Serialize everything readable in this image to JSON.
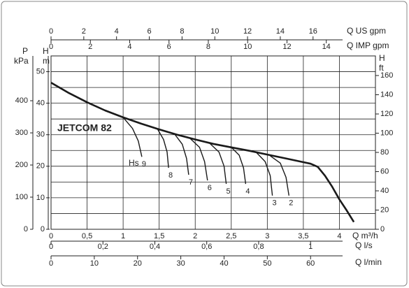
{
  "chart_data": {
    "type": "line",
    "product": "JETCOM 82",
    "suction_label": "Hs",
    "xlabel": "Q m³/h",
    "xlim": [
      0,
      4.5
    ],
    "xticks": [
      0,
      {
        "value": 0.5,
        "label": "0,5"
      },
      1,
      {
        "value": 1.5,
        "label": "1,5"
      },
      2,
      {
        "value": 2.5,
        "label": "2,5"
      },
      3,
      {
        "value": 3.5,
        "label": "3,5"
      },
      4
    ],
    "ylabel": "H",
    "yunit": "m",
    "ylim": [
      0,
      55
    ],
    "yticks": [
      0,
      10,
      20,
      30,
      40,
      50
    ],
    "yminor": [
      5,
      15,
      25,
      35,
      45
    ],
    "grid": true,
    "axes": [
      {
        "label": "Q US gpm",
        "lim": [
          0,
          19.81
        ],
        "ticks": [
          0,
          2,
          4,
          6,
          8,
          10,
          12,
          14,
          16
        ]
      },
      {
        "label": "Q IMP gpm",
        "lim": [
          0,
          16.5
        ],
        "ticks": [
          0,
          2,
          4,
          6,
          8,
          10,
          12,
          14
        ]
      },
      {
        "label": "Q l/s",
        "lim": [
          0,
          1.25
        ],
        "ticks": [
          0,
          {
            "value": 0.2,
            "label": "0,2"
          },
          {
            "value": 0.4,
            "label": "0,4"
          },
          {
            "value": 0.6,
            "label": "0,6"
          },
          {
            "value": 0.8,
            "label": "0,8"
          },
          1
        ]
      },
      {
        "label": "Q l/min",
        "lim": [
          0,
          75
        ],
        "ticks": [
          0,
          10,
          20,
          30,
          40,
          50,
          60
        ]
      },
      {
        "label": "P",
        "unit": "kPa",
        "lim": [
          0,
          539.4
        ],
        "ticks": [
          0,
          100,
          200,
          300,
          400
        ]
      },
      {
        "label": "H",
        "unit": "ft",
        "lim": [
          0,
          180.4
        ],
        "ticks": [
          0,
          20,
          40,
          60,
          80,
          100,
          120,
          140,
          160
        ]
      }
    ],
    "series": [
      {
        "color": "#1a1a1a",
        "x": [
          0,
          0.25,
          0.5,
          0.75,
          1,
          1.25,
          1.5,
          1.75,
          2,
          2.25,
          2.5,
          2.75,
          3,
          3.25,
          3.5,
          3.6,
          3.7,
          3.8,
          3.9,
          4,
          4.1,
          4.2
        ],
        "values": [
          46.5,
          43.2,
          40.3,
          37.7,
          35.5,
          33.5,
          31.7,
          30,
          28.5,
          27.1,
          26,
          24.9,
          23.7,
          22.5,
          21.3,
          20.8,
          19.8,
          17,
          13.5,
          9.5,
          6,
          2.3
        ]
      },
      {
        "name": "9",
        "color": "#1a1a1a",
        "x": [
          1.0,
          1.13,
          1.21,
          1.26
        ],
        "values": [
          35.5,
          32,
          28,
          23
        ]
      },
      {
        "name": "8",
        "color": "#1a1a1a",
        "x": [
          1.48,
          1.56,
          1.61,
          1.63
        ],
        "values": [
          31.7,
          28.5,
          24.5,
          19.5
        ]
      },
      {
        "name": "7",
        "color": "#1a1a1a",
        "x": [
          1.72,
          1.82,
          1.88,
          1.91
        ],
        "values": [
          30,
          27,
          22.5,
          17.3
        ]
      },
      {
        "name": "6",
        "color": "#1a1a1a",
        "x": [
          1.93,
          2.06,
          2.13,
          2.17
        ],
        "values": [
          28.8,
          26,
          21.5,
          15.5
        ]
      },
      {
        "name": "5",
        "color": "#1a1a1a",
        "x": [
          2.2,
          2.33,
          2.4,
          2.43
        ],
        "values": [
          27.3,
          24.5,
          20,
          14.4
        ]
      },
      {
        "name": "4",
        "color": "#1a1a1a",
        "x": [
          2.5,
          2.61,
          2.67,
          2.7
        ],
        "values": [
          26,
          23.5,
          19.5,
          14.4
        ]
      },
      {
        "name": "3",
        "color": "#1a1a1a",
        "x": [
          2.85,
          2.97,
          3.04,
          3.07
        ],
        "values": [
          24.3,
          21.5,
          17,
          10.7
        ]
      },
      {
        "name": "2",
        "color": "#1a1a1a",
        "x": [
          3.04,
          3.18,
          3.26,
          3.3
        ],
        "values": [
          23.3,
          21,
          16.5,
          10.7
        ]
      }
    ]
  }
}
